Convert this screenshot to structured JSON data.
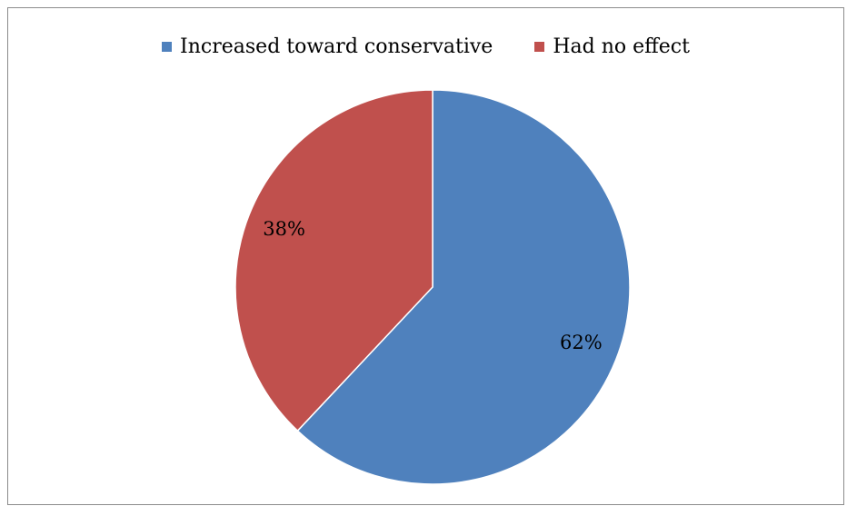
{
  "chart_data": {
    "type": "pie",
    "title": "",
    "legend_position": "top",
    "slices": [
      {
        "name": "Increased toward conservative",
        "value": 62,
        "label": "62%",
        "color": "#4F81BD"
      },
      {
        "name": "Had no effect",
        "value": 38,
        "label": "38%",
        "color": "#C0504D"
      }
    ]
  }
}
